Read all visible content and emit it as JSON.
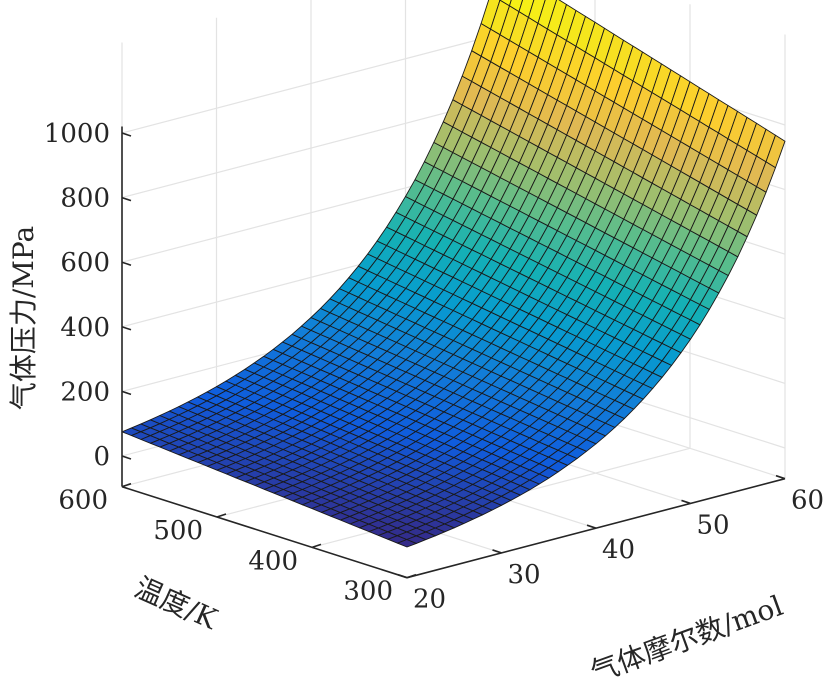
{
  "chart_data": {
    "type": "surface",
    "title": "",
    "xlabel": "气体摩尔数/mol",
    "ylabel": "温度/K",
    "zlabel": "气体压力/MPa",
    "x_ticks": [
      20,
      30,
      40,
      50,
      60
    ],
    "y_ticks": [
      300,
      400,
      500,
      600
    ],
    "z_ticks": [
      0,
      200,
      400,
      600,
      800,
      1000
    ],
    "xlim": [
      20,
      60
    ],
    "ylim": [
      300,
      600
    ],
    "zlim": [
      0,
      1000
    ],
    "grid": true,
    "colormap": "parula",
    "x_range": [
      20,
      60
    ],
    "y_range": [
      300,
      600
    ],
    "z_corners": {
      "x20_y300": 0,
      "x20_y600": 75,
      "x60_y300": 950,
      "x60_y600": 1220
    },
    "grid_x_count": 41,
    "grid_y_count": 31
  }
}
